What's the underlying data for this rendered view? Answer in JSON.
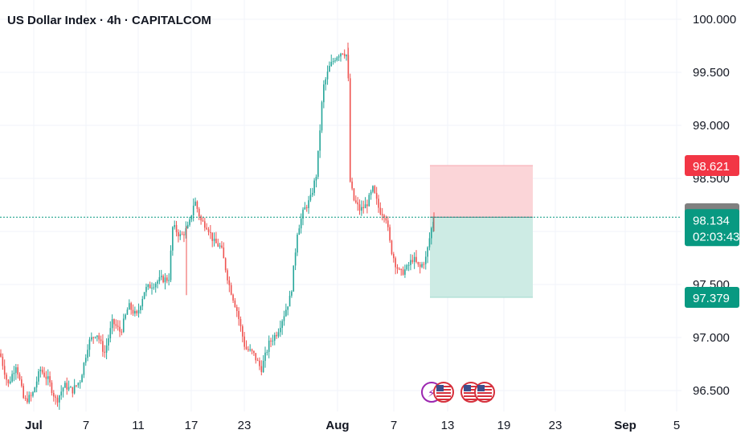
{
  "header": {
    "title": "US Dollar Index · 4h · CAPITALCOM"
  },
  "colors": {
    "up": "#26a69a",
    "down": "#ef5350",
    "grid": "#f0f3fa",
    "text": "#131722",
    "stop_zone": "#fbd5d8",
    "target_zone": "#cdebe4",
    "badge_red": "#f23645",
    "badge_gray": "#808080",
    "badge_green": "#089981"
  },
  "icons": [
    "us-flag-icon",
    "us-flag-icon",
    "us-flag-icon"
  ],
  "chart_data": {
    "type": "candlestick",
    "symbol": "US Dollar Index",
    "interval": "4h",
    "source": "CAPITALCOM",
    "ylim": [
      96.3,
      100.05
    ],
    "y_ticks": [
      "100.000",
      "99.500",
      "99.000",
      "98.500",
      "97.500",
      "97.000",
      "96.500"
    ],
    "x_ticks": [
      "Jul",
      "7",
      "11",
      "17",
      "23",
      "Aug",
      "7",
      "13",
      "19",
      "23",
      "Sep",
      "5"
    ],
    "last_price": 98.134,
    "countdown": "02:03:43",
    "position": {
      "type": "long",
      "entry": 98.134,
      "stop_loss_label": 98.621,
      "target_label": 97.379,
      "marker_label": 98.159
    },
    "price_labels": [
      {
        "name": "stop",
        "value": "98.621",
        "price": 98.621
      },
      {
        "name": "marker",
        "value": "98.159",
        "price": 98.159
      },
      {
        "name": "current",
        "value": "98.134",
        "price": 98.134
      },
      {
        "name": "target",
        "value": "97.379",
        "price": 97.379
      }
    ],
    "price_path": [
      [
        0,
        96.85
      ],
      [
        10,
        96.55
      ],
      [
        20,
        96.75
      ],
      [
        30,
        96.4
      ],
      [
        40,
        96.45
      ],
      [
        50,
        96.7
      ],
      [
        60,
        96.6
      ],
      [
        70,
        96.4
      ],
      [
        80,
        96.55
      ],
      [
        90,
        96.5
      ],
      [
        100,
        96.6
      ],
      [
        110,
        96.95
      ],
      [
        120,
        97.05
      ],
      [
        130,
        96.85
      ],
      [
        140,
        97.15
      ],
      [
        150,
        97.05
      ],
      [
        160,
        97.3
      ],
      [
        170,
        97.2
      ],
      [
        180,
        97.45
      ],
      [
        190,
        97.5
      ],
      [
        200,
        97.55
      ],
      [
        210,
        97.55
      ],
      [
        215,
        98.05
      ],
      [
        225,
        97.95
      ],
      [
        235,
        98.05
      ],
      [
        242,
        98.3
      ],
      [
        250,
        98.1
      ],
      [
        258,
        98.05
      ],
      [
        266,
        97.9
      ],
      [
        275,
        97.85
      ],
      [
        285,
        97.5
      ],
      [
        295,
        97.25
      ],
      [
        305,
        96.9
      ],
      [
        315,
        96.85
      ],
      [
        325,
        96.7
      ],
      [
        335,
        96.95
      ],
      [
        345,
        97.05
      ],
      [
        355,
        97.25
      ],
      [
        362,
        97.4
      ],
      [
        370,
        98.0
      ],
      [
        378,
        98.2
      ],
      [
        386,
        98.3
      ],
      [
        394,
        98.55
      ],
      [
        402,
        99.35
      ],
      [
        410,
        99.55
      ],
      [
        418,
        99.65
      ],
      [
        426,
        99.7
      ],
      [
        433,
        99.65
      ],
      [
        435,
        98.5
      ],
      [
        440,
        98.3
      ],
      [
        448,
        98.2
      ],
      [
        456,
        98.25
      ],
      [
        464,
        98.4
      ],
      [
        472,
        98.2
      ],
      [
        480,
        98.15
      ],
      [
        486,
        97.85
      ],
      [
        492,
        97.7
      ],
      [
        498,
        97.6
      ],
      [
        506,
        97.65
      ],
      [
        514,
        97.75
      ],
      [
        522,
        97.65
      ],
      [
        530,
        97.75
      ],
      [
        536,
        98.0
      ],
      [
        540,
        98.134
      ]
    ]
  }
}
